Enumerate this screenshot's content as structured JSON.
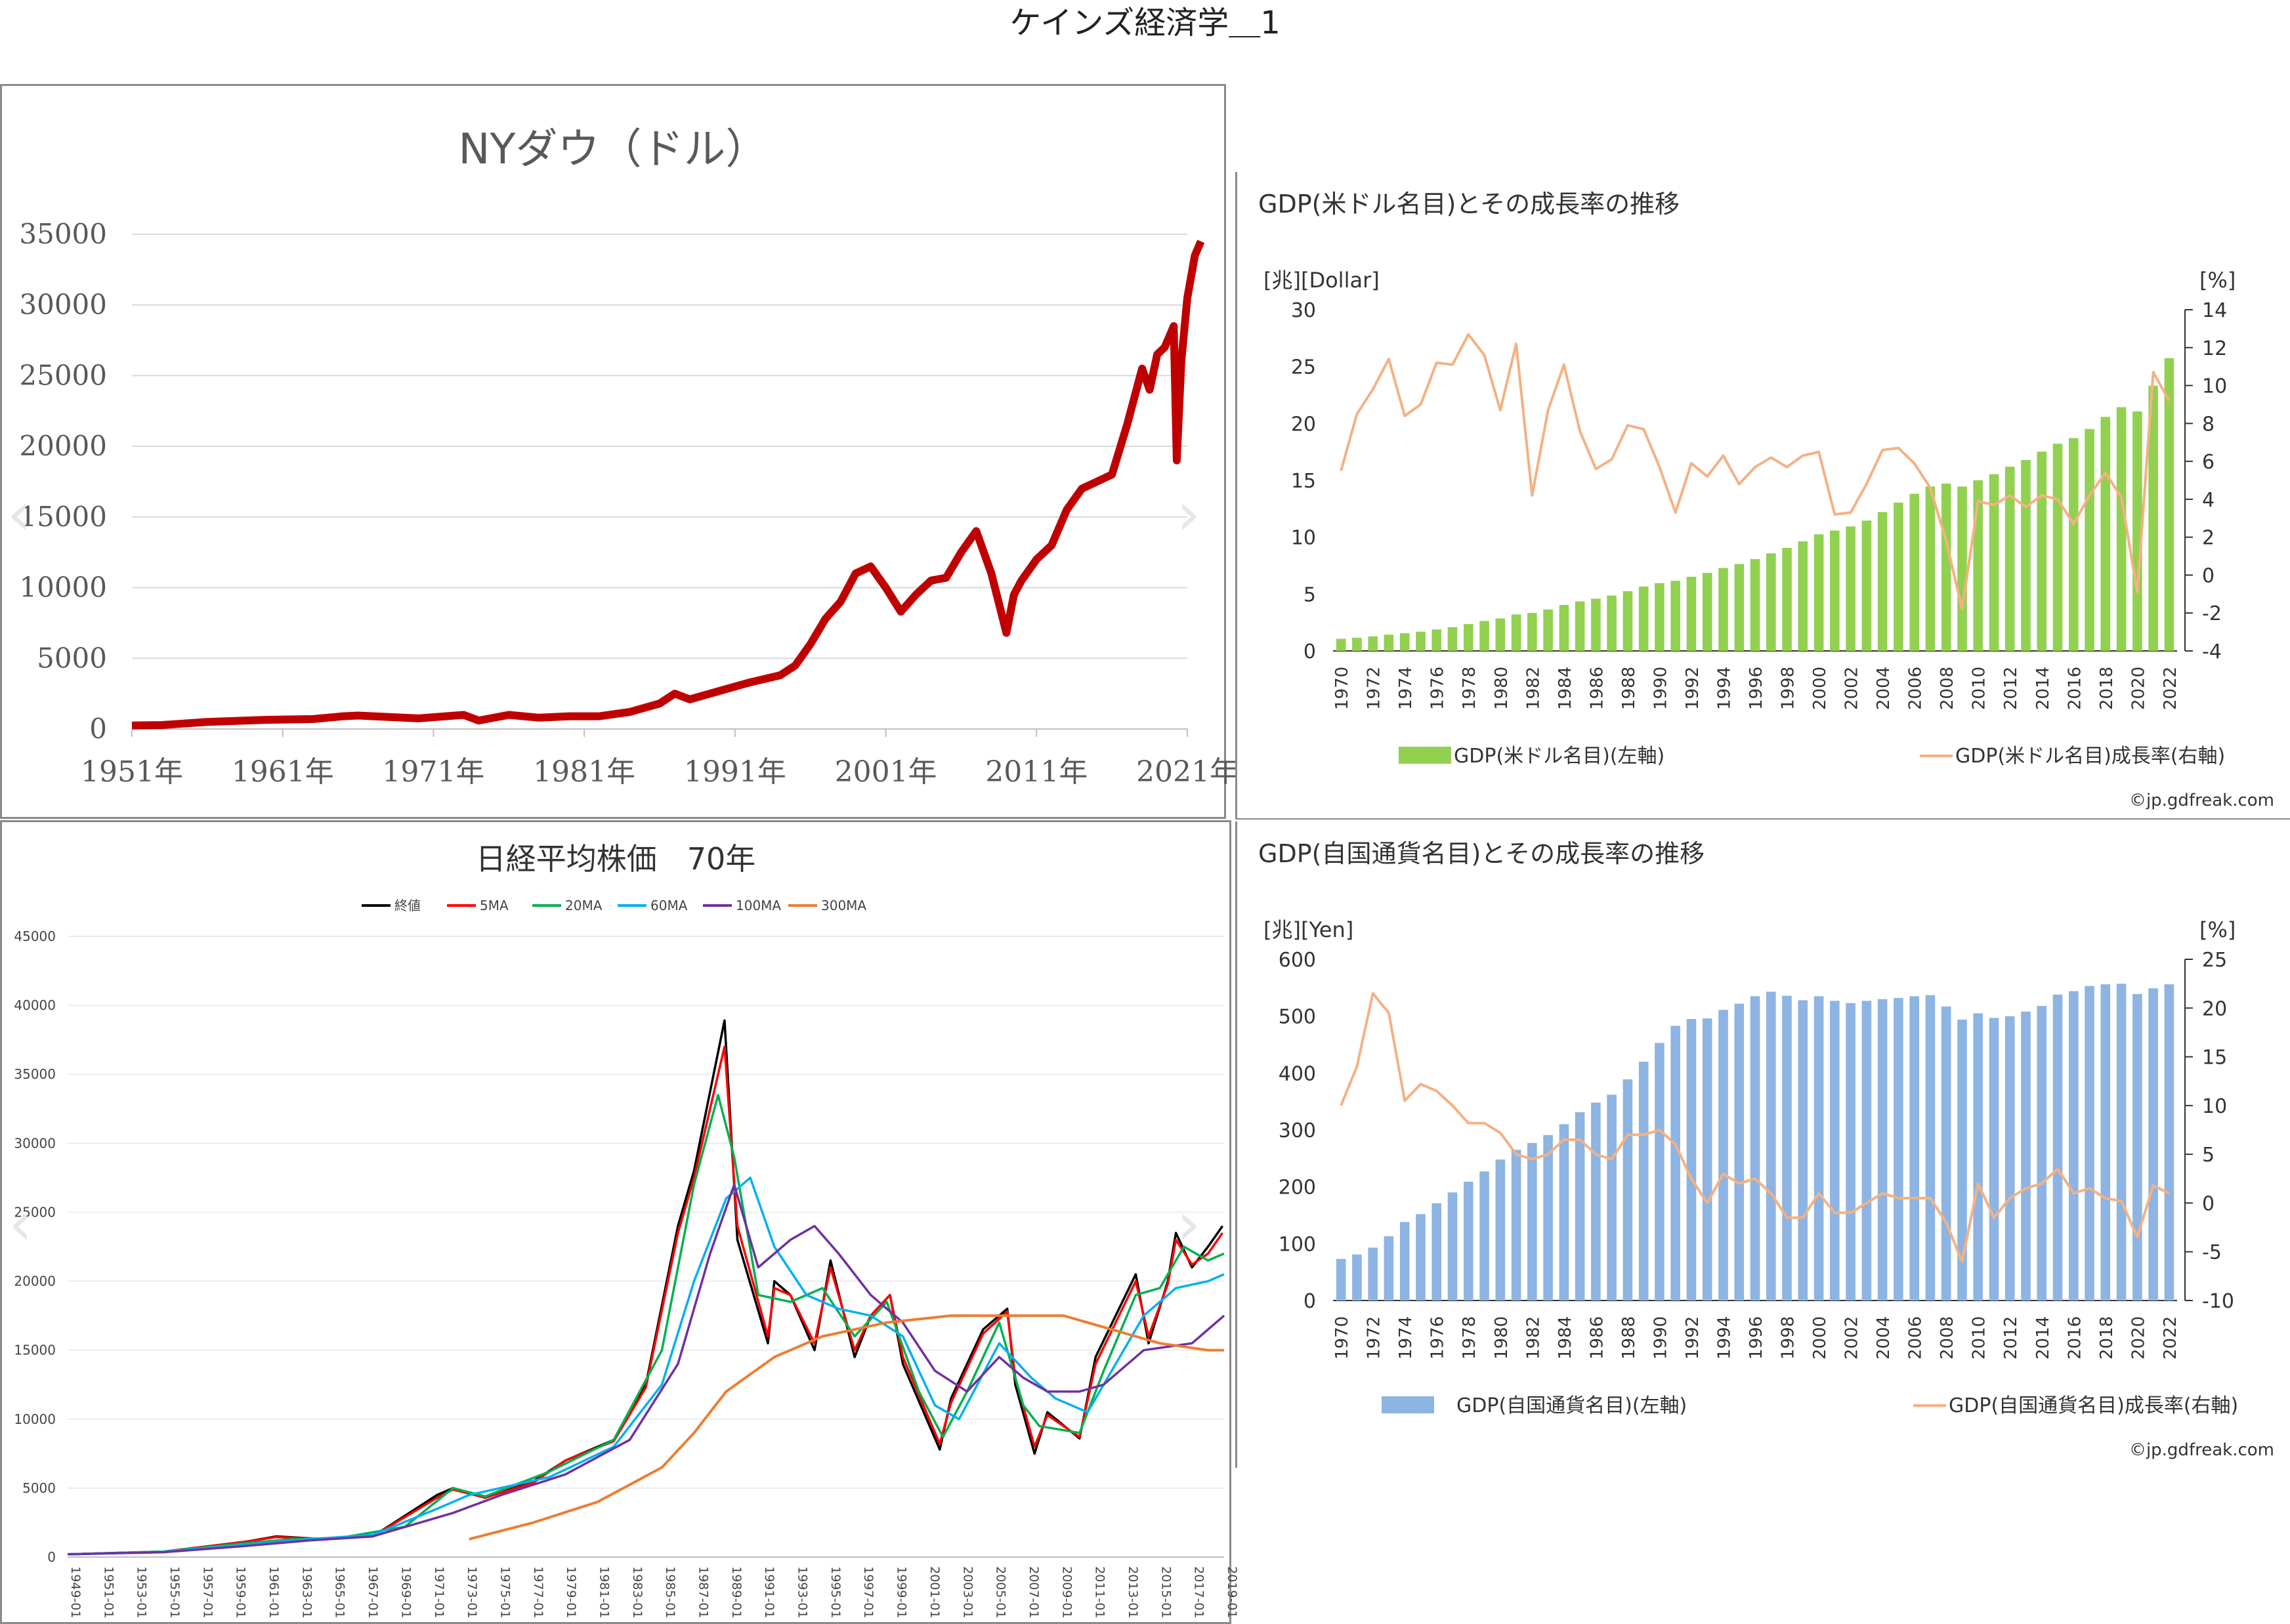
{
  "page": {
    "title": "ケインズ経済学＿1"
  },
  "chart_data": [
    {
      "id": "ny",
      "type": "line",
      "title": "NYダウ（ドル）",
      "color": "#c00000",
      "ylim": [
        0,
        35000
      ],
      "yticks": [
        "35000",
        "30000",
        "25000",
        "20000",
        "15000",
        "10000",
        "5000",
        "0"
      ],
      "xticks": [
        "1951年",
        "1961年",
        "1971年",
        "1981年",
        "1991年",
        "2001年",
        "2011年",
        "2021年"
      ],
      "xlim": [
        1951,
        2021
      ],
      "x": [
        1951,
        1953,
        1956,
        1960,
        1963,
        1965,
        1966,
        1970,
        1973,
        1974,
        1976,
        1978,
        1980,
        1982,
        1984,
        1986,
        1987,
        1988,
        1990,
        1992,
        1994,
        1995,
        1996,
        1997,
        1998,
        1999,
        2000,
        2001,
        2002,
        2003,
        2004,
        2005,
        2006,
        2007,
        2008,
        2009,
        2009.5,
        2010,
        2011,
        2012,
        2013,
        2014,
        2015,
        2016,
        2017,
        2018,
        2018.5,
        2019,
        2019.5,
        2020.1,
        2020.3,
        2020.6,
        2021,
        2021.5,
        2021.9
      ],
      "values": [
        250,
        280,
        500,
        650,
        700,
        900,
        950,
        750,
        1000,
        600,
        1000,
        800,
        900,
        900,
        1200,
        1800,
        2500,
        2100,
        2700,
        3300,
        3800,
        4500,
        6000,
        7800,
        9000,
        11000,
        11500,
        10000,
        8300,
        9500,
        10500,
        10700,
        12500,
        14000,
        11000,
        6800,
        9500,
        10500,
        12000,
        13000,
        15500,
        17000,
        17500,
        18000,
        21500,
        25500,
        24000,
        26500,
        27000,
        28500,
        19000,
        26000,
        30500,
        33500,
        34500
      ]
    },
    {
      "id": "nk",
      "type": "line",
      "title": "日経平均株価　70年",
      "ylim": [
        0,
        45000
      ],
      "yticks": [
        "45000",
        "40000",
        "35000",
        "30000",
        "25000",
        "20000",
        "15000",
        "10000",
        "5000",
        "0"
      ],
      "xticks": [
        "1949-01",
        "1951-01",
        "1953-01",
        "1955-01",
        "1957-01",
        "1959-01",
        "1961-01",
        "1963-01",
        "1965-01",
        "1967-01",
        "1969-01",
        "1971-01",
        "1973-01",
        "1975-01",
        "1977-01",
        "1979-01",
        "1981-01",
        "1983-01",
        "1985-01",
        "1987-01",
        "1989-01",
        "1991-01",
        "1993-01",
        "1995-01",
        "1997-01",
        "1999-01",
        "2001-01",
        "2003-01",
        "2005-01",
        "2007-01",
        "2009-01",
        "2011-01",
        "2013-01",
        "2015-01",
        "2017-01",
        "2019-01"
      ],
      "xlim": [
        1949,
        2021
      ],
      "series": [
        {
          "name": "終値",
          "color": "#000000",
          "x": [
            1949,
            1955,
            1960,
            1962,
            1965,
            1968,
            1972,
            1973,
            1975,
            1978,
            1980,
            1983,
            1985,
            1987,
            1988,
            1989.9,
            1990.7,
            1992.6,
            1993,
            1994,
            1995.5,
            1996.5,
            1998,
            1999,
            2000.2,
            2001,
            2003.3,
            2004,
            2006,
            2007.5,
            2008,
            2009.2,
            2010,
            2012,
            2013,
            2015.5,
            2016.3,
            2017.5,
            2018,
            2019,
            2020,
            2020.9
          ],
          "values": [
            200,
            400,
            1100,
            1500,
            1300,
            1500,
            4500,
            5000,
            4300,
            5500,
            7000,
            8500,
            12500,
            24000,
            28000,
            38900,
            23000,
            15500,
            20000,
            19000,
            15000,
            21500,
            14500,
            17500,
            19000,
            14000,
            7800,
            11500,
            16500,
            18000,
            12500,
            7500,
            10500,
            8600,
            14500,
            20500,
            15500,
            20000,
            23500,
            21000,
            22500,
            24000
          ]
        },
        {
          "name": "5MA",
          "color": "#ff0000",
          "x": [
            1949,
            1955,
            1960,
            1962,
            1965,
            1968,
            1972,
            1973,
            1975,
            1978,
            1980,
            1983,
            1985,
            1987,
            1988,
            1989.9,
            1990.7,
            1992.6,
            1993,
            1994,
            1995.5,
            1996.5,
            1998,
            1999,
            2000.2,
            2001,
            2003.3,
            2004,
            2006,
            2007.5,
            2008,
            2009.2,
            2010,
            2012,
            2013,
            2015.5,
            2016.3,
            2017.5,
            2018,
            2019,
            2020,
            2020.9
          ],
          "values": [
            200,
            400,
            1100,
            1450,
            1300,
            1500,
            4300,
            4900,
            4300,
            5400,
            7000,
            8400,
            12300,
            23500,
            27500,
            37000,
            24000,
            16000,
            19500,
            19000,
            15500,
            21000,
            15000,
            17500,
            19000,
            14500,
            8200,
            11200,
            16200,
            17800,
            13000,
            8000,
            10300,
            8700,
            14000,
            20000,
            16000,
            19800,
            23000,
            21200,
            22000,
            23500
          ]
        },
        {
          "name": "20MA",
          "color": "#00b050",
          "x": [
            1949,
            1955,
            1960,
            1963,
            1966,
            1970,
            1973,
            1975,
            1979,
            1983,
            1986,
            1988,
            1989.5,
            1990.5,
            1992,
            1994,
            1996,
            1998,
            2000,
            2002,
            2003.5,
            2005,
            2007,
            2008.5,
            2009.5,
            2012,
            2013.5,
            2015.5,
            2017,
            2018.5,
            2020,
            2021
          ],
          "values": [
            200,
            400,
            1000,
            1300,
            1400,
            2200,
            5000,
            4400,
            6200,
            8500,
            15000,
            27000,
            33500,
            29000,
            19000,
            18500,
            19500,
            16000,
            18500,
            12000,
            8700,
            12000,
            17000,
            11000,
            9500,
            9000,
            13500,
            19000,
            19500,
            22500,
            21500,
            22000
          ]
        },
        {
          "name": "60MA",
          "color": "#00b0f0",
          "x": [
            1949,
            1955,
            1960,
            1964,
            1968,
            1972,
            1974,
            1979,
            1983,
            1986,
            1988,
            1990,
            1991.5,
            1993,
            1995,
            1997,
            1999,
            2001,
            2003,
            2004.5,
            2007,
            2009,
            2010.5,
            2012.5,
            2014,
            2016,
            2018,
            2020,
            2021
          ],
          "values": [
            200,
            380,
            900,
            1300,
            1600,
            3500,
            4500,
            5800,
            8000,
            12500,
            20000,
            26000,
            27500,
            22500,
            19000,
            18000,
            17500,
            16000,
            11000,
            10000,
            15500,
            13000,
            11500,
            10500,
            13500,
            17500,
            19500,
            20000,
            20500
          ]
        },
        {
          "name": "100MA",
          "color": "#7030a0",
          "x": [
            1949,
            1955,
            1960,
            1964,
            1968,
            1973,
            1976,
            1980,
            1984,
            1987,
            1989,
            1990.5,
            1992,
            1994,
            1995.5,
            1997,
            1999,
            2001,
            2003,
            2005,
            2007,
            2008.5,
            2010,
            2012,
            2013.5,
            2016,
            2019,
            2021
          ],
          "values": [
            200,
            350,
            800,
            1200,
            1500,
            3200,
            4500,
            6000,
            8500,
            14000,
            22000,
            27000,
            21000,
            23000,
            24000,
            22000,
            19000,
            17000,
            13500,
            12000,
            14500,
            13000,
            12000,
            12000,
            12500,
            15000,
            15500,
            17500
          ]
        },
        {
          "name": "300MA",
          "color": "#ed7d31",
          "x": [
            1974,
            1978,
            1982,
            1986,
            1988,
            1990,
            1993,
            1996,
            2000,
            2004,
            2008,
            2011,
            2014,
            2017,
            2020,
            2021
          ],
          "values": [
            1300,
            2500,
            4000,
            6500,
            9000,
            12000,
            14500,
            16000,
            17000,
            17500,
            17500,
            17500,
            16500,
            15500,
            15000,
            15000
          ]
        }
      ]
    },
    {
      "id": "us",
      "type": "bar",
      "title": "GDP(米ドル名目)とその成長率の推移",
      "ylabel_left": "[兆][Dollar]",
      "ylabel_right": "[%]",
      "ylim": [
        0,
        30
      ],
      "ylim_right": [
        -4,
        14
      ],
      "yticks": [
        "30",
        "25",
        "20",
        "15",
        "10",
        "5",
        "0"
      ],
      "yticks_right": [
        "14",
        "12",
        "10",
        "8",
        "6",
        "4",
        "2",
        "0",
        "-2",
        "-4"
      ],
      "categories": [
        "1970",
        "1971",
        "1972",
        "1973",
        "1974",
        "1975",
        "1976",
        "1977",
        "1978",
        "1979",
        "1980",
        "1981",
        "1982",
        "1983",
        "1984",
        "1985",
        "1986",
        "1987",
        "1988",
        "1989",
        "1990",
        "1991",
        "1992",
        "1993",
        "1994",
        "1995",
        "1996",
        "1997",
        "1998",
        "1999",
        "2000",
        "2001",
        "2002",
        "2003",
        "2004",
        "2005",
        "2006",
        "2007",
        "2008",
        "2009",
        "2010",
        "2011",
        "2012",
        "2013",
        "2014",
        "2015",
        "2016",
        "2017",
        "2018",
        "2019",
        "2020",
        "2021",
        "2022"
      ],
      "xticks": [
        "1970",
        "1972",
        "1974",
        "1976",
        "1978",
        "1980",
        "1982",
        "1984",
        "1986",
        "1988",
        "1990",
        "1992",
        "1994",
        "1996",
        "1998",
        "2000",
        "2002",
        "2004",
        "2006",
        "2008",
        "2010",
        "2012",
        "2014",
        "2016",
        "2018",
        "2020",
        "2022"
      ],
      "series": [
        {
          "name": "GDP(米ドル名目)(左軸)",
          "type": "bar",
          "color": "#92d050",
          "values": [
            1.07,
            1.16,
            1.28,
            1.43,
            1.55,
            1.69,
            1.88,
            2.09,
            2.36,
            2.63,
            2.86,
            3.21,
            3.34,
            3.64,
            4.04,
            4.35,
            4.59,
            4.87,
            5.25,
            5.66,
            5.96,
            6.16,
            6.52,
            6.86,
            7.29,
            7.64,
            8.07,
            8.58,
            9.06,
            9.63,
            10.25,
            10.58,
            10.94,
            11.46,
            12.21,
            13.04,
            13.81,
            14.45,
            14.71,
            14.45,
            15.0,
            15.54,
            16.2,
            16.78,
            17.52,
            18.22,
            18.71,
            19.52,
            20.58,
            21.43,
            21.06,
            23.32,
            25.74
          ]
        },
        {
          "name": "GDP(米ドル名目)成長率(右軸)",
          "type": "line",
          "color": "#f4b183",
          "values": [
            5.5,
            8.5,
            9.8,
            11.4,
            8.4,
            9.0,
            11.2,
            11.1,
            12.7,
            11.6,
            8.7,
            12.2,
            4.2,
            8.7,
            11.1,
            7.6,
            5.6,
            6.1,
            7.9,
            7.7,
            5.7,
            3.3,
            5.9,
            5.2,
            6.3,
            4.8,
            5.7,
            6.2,
            5.7,
            6.3,
            6.5,
            3.2,
            3.3,
            4.8,
            6.6,
            6.7,
            5.9,
            4.6,
            1.8,
            -1.8,
            3.9,
            3.7,
            4.2,
            3.6,
            4.2,
            4.0,
            2.7,
            4.2,
            5.4,
            4.1,
            -0.9,
            10.7,
            9.2
          ]
        }
      ],
      "credit": "©jp.gdfreak.com"
    },
    {
      "id": "jp",
      "type": "bar",
      "title": "GDP(自国通貨名目)とその成長率の推移",
      "ylabel_left": "[兆][Yen]",
      "ylabel_right": "[%]",
      "ylim": [
        0,
        600
      ],
      "ylim_right": [
        -10,
        25
      ],
      "yticks": [
        "600",
        "500",
        "400",
        "300",
        "200",
        "100",
        "0"
      ],
      "yticks_right": [
        "25",
        "20",
        "15",
        "10",
        "5",
        "0",
        "-5",
        "-10"
      ],
      "categories": [
        "1970",
        "1971",
        "1972",
        "1973",
        "1974",
        "1975",
        "1976",
        "1977",
        "1978",
        "1979",
        "1980",
        "1981",
        "1982",
        "1983",
        "1984",
        "1985",
        "1986",
        "1987",
        "1988",
        "1989",
        "1990",
        "1991",
        "1992",
        "1993",
        "1994",
        "1995",
        "1996",
        "1997",
        "1998",
        "1999",
        "2000",
        "2001",
        "2002",
        "2003",
        "2004",
        "2005",
        "2006",
        "2007",
        "2008",
        "2009",
        "2010",
        "2011",
        "2012",
        "2013",
        "2014",
        "2015",
        "2016",
        "2017",
        "2018",
        "2019",
        "2020",
        "2021",
        "2022"
      ],
      "xticks": [
        "1970",
        "1972",
        "1974",
        "1976",
        "1978",
        "1980",
        "1982",
        "1984",
        "1986",
        "1988",
        "1990",
        "1992",
        "1994",
        "1996",
        "1998",
        "2000",
        "2002",
        "2004",
        "2006",
        "2008",
        "2010",
        "2012",
        "2014",
        "2016",
        "2018",
        "2020",
        "2022"
      ],
      "series": [
        {
          "name": "GDP(自国通貨名目)(左軸)",
          "type": "bar",
          "color": "#8db4e2",
          "values": [
            73,
            81,
            93,
            113,
            138,
            152,
            171,
            190,
            209,
            227,
            248,
            265,
            277,
            291,
            310,
            331,
            348,
            362,
            389,
            420,
            453,
            483,
            495,
            496,
            511,
            522,
            535,
            543,
            536,
            528,
            535,
            527,
            523,
            527,
            530,
            532,
            535,
            537,
            517,
            494,
            505,
            497,
            500,
            508,
            518,
            538,
            544,
            553,
            556,
            557,
            539,
            549,
            556
          ]
        },
        {
          "name": "GDP(自国通貨名目)成長率(右軸)",
          "type": "line",
          "color": "#f4b183",
          "values": [
            10.0,
            14.0,
            21.5,
            19.5,
            10.5,
            12.2,
            11.5,
            10.0,
            8.2,
            8.2,
            7.2,
            5.0,
            4.5,
            5.0,
            6.5,
            6.5,
            5.0,
            4.5,
            7.0,
            7.0,
            7.5,
            6.0,
            2.5,
            0.0,
            3.0,
            2.0,
            2.5,
            1.0,
            -1.5,
            -1.5,
            1.0,
            -1.0,
            -1.0,
            0.0,
            1.0,
            0.5,
            0.5,
            0.5,
            -2.0,
            -6.0,
            2.0,
            -1.5,
            0.5,
            1.5,
            2.0,
            3.5,
            1.0,
            1.5,
            0.5,
            0.2,
            -3.5,
            1.8,
            1.0
          ]
        }
      ],
      "credit": "©jp.gdfreak.com"
    }
  ]
}
